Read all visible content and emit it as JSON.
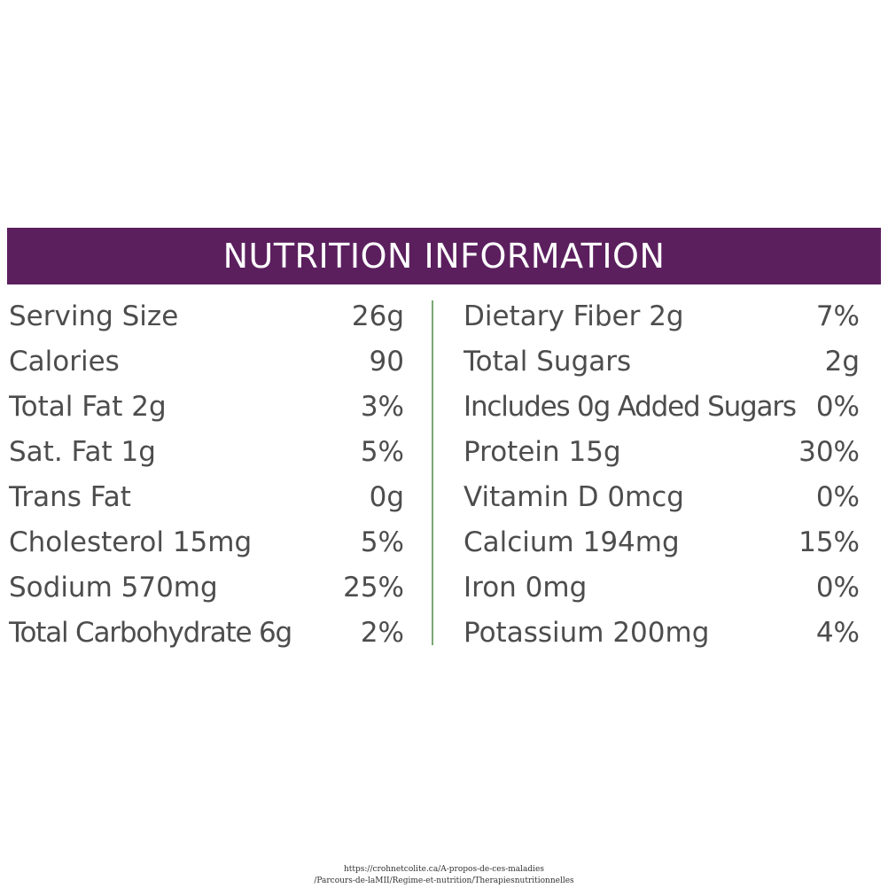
{
  "header": {
    "title": "NUTRITION INFORMATION"
  },
  "colors": {
    "header_band": "#5b1f5e",
    "divider": "#7aa874",
    "text": "#4d4d4d"
  },
  "left_column": [
    {
      "label": "Serving Size",
      "value": "26g"
    },
    {
      "label": "Calories",
      "value": "90"
    },
    {
      "label": "Total Fat 2g",
      "value": "3%"
    },
    {
      "label": "Sat. Fat 1g",
      "value": "5%"
    },
    {
      "label": "Trans Fat",
      "value": "0g"
    },
    {
      "label": "Cholesterol 15mg",
      "value": "5%"
    },
    {
      "label": "Sodium 570mg",
      "value": "25%"
    },
    {
      "label": "Total Carbohydrate 6g",
      "value": "2%"
    }
  ],
  "right_column": [
    {
      "label": "Dietary Fiber 2g",
      "value": "7%"
    },
    {
      "label": "Total Sugars",
      "value": "2g"
    },
    {
      "label": "Includes 0g Added Sugars",
      "value": "0%"
    },
    {
      "label": "Protein 15g",
      "value": "30%"
    },
    {
      "label": "Vitamin D 0mcg",
      "value": "0%"
    },
    {
      "label": "Calcium 194mg",
      "value": "15%"
    },
    {
      "label": "Iron 0mg",
      "value": "0%"
    },
    {
      "label": "Potassium 200mg",
      "value": "4%"
    }
  ],
  "source": {
    "line1": "https://crohnetcolite.ca/A-propos-de-ces-maladies",
    "line2": "/Parcours-de-laMII/Regime-et-nutrition/Therapiesnutritionnelles"
  }
}
